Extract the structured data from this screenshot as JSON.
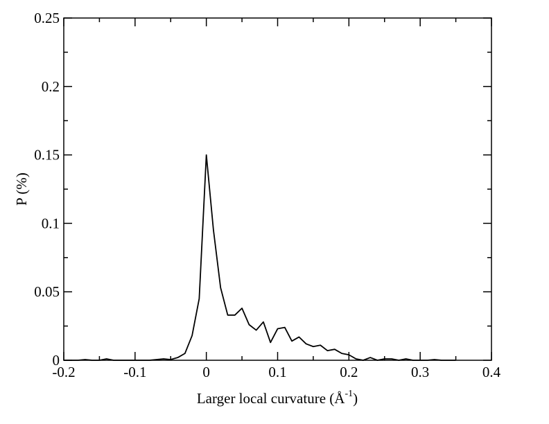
{
  "chart_data": {
    "type": "line",
    "xlabel_main": "Larger local curvature (Å",
    "xlabel_sup": "-1",
    "xlabel_close": ")",
    "ylabel": "P (%)",
    "xlim": [
      -0.2,
      0.4
    ],
    "ylim": [
      0,
      0.25
    ],
    "xticks": [
      -0.2,
      -0.1,
      0,
      0.1,
      0.2,
      0.3,
      0.4
    ],
    "xtick_labels": [
      "-0.2",
      "-0.1",
      "0",
      "0.1",
      "0.2",
      "0.3",
      "0.4"
    ],
    "yticks": [
      0,
      0.05,
      0.1,
      0.15,
      0.2,
      0.25
    ],
    "ytick_labels": [
      "0",
      "0.05",
      "0.1",
      "0.15",
      "0.2",
      "0.25"
    ],
    "grid": false,
    "line_color": "#000000",
    "series": [
      {
        "x": [
          -0.2,
          -0.19,
          -0.18,
          -0.17,
          -0.16,
          -0.15,
          -0.14,
          -0.13,
          -0.12,
          -0.11,
          -0.1,
          -0.09,
          -0.08,
          -0.07,
          -0.06,
          -0.05,
          -0.04,
          -0.03,
          -0.02,
          -0.01,
          0.0,
          0.01,
          0.02,
          0.03,
          0.04,
          0.05,
          0.06,
          0.07,
          0.08,
          0.09,
          0.1,
          0.11,
          0.12,
          0.13,
          0.14,
          0.15,
          0.16,
          0.17,
          0.18,
          0.19,
          0.2,
          0.21,
          0.22,
          0.23,
          0.24,
          0.25,
          0.26,
          0.27,
          0.28,
          0.29,
          0.3,
          0.31,
          0.32,
          0.33,
          0.34,
          0.35
        ],
        "y": [
          0.0,
          0.0,
          0.0,
          0.0005,
          0.0,
          0.0,
          0.001,
          0.0,
          0.0,
          0.0,
          0.0,
          0.0,
          0.0,
          0.0005,
          0.001,
          0.0005,
          0.002,
          0.005,
          0.018,
          0.045,
          0.15,
          0.095,
          0.053,
          0.033,
          0.033,
          0.038,
          0.026,
          0.022,
          0.028,
          0.013,
          0.023,
          0.024,
          0.014,
          0.017,
          0.012,
          0.01,
          0.011,
          0.007,
          0.008,
          0.005,
          0.004,
          0.001,
          0.0,
          0.002,
          0.0,
          0.001,
          0.001,
          0.0,
          0.001,
          0.0,
          0.0,
          0.0,
          0.0005,
          0.0,
          0.0,
          0.0
        ]
      }
    ]
  }
}
